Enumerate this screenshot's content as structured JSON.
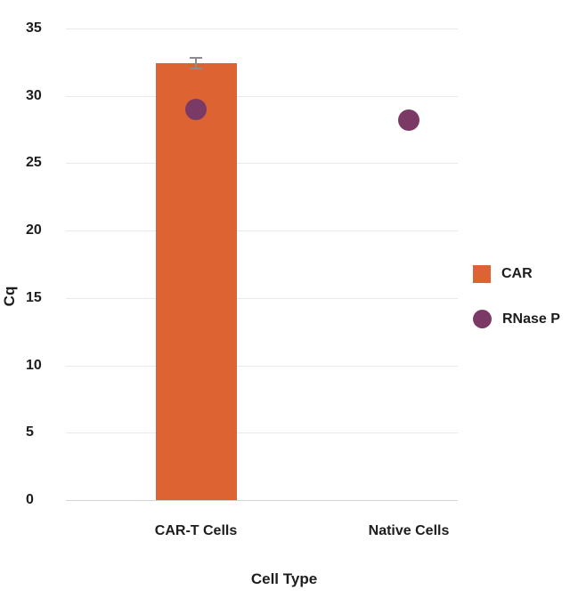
{
  "chart_data": {
    "type": "bar",
    "title": "",
    "xlabel": "Cell Type",
    "ylabel": "Cq",
    "categories": [
      "CAR-T Cells",
      "Native Cells"
    ],
    "series": [
      {
        "name": "CAR",
        "mark": "bar",
        "color": "#dd6333",
        "values": [
          32.4,
          null
        ],
        "errors": [
          0.4,
          null
        ]
      },
      {
        "name": "RNase P",
        "mark": "point",
        "color": "#7b3a66",
        "values": [
          29.0,
          28.2
        ],
        "errors": [
          null,
          null
        ]
      }
    ],
    "ylim": [
      0,
      35
    ],
    "yticks": [
      0,
      5,
      10,
      15,
      20,
      25,
      30,
      35
    ],
    "grid": "horizontal",
    "gridline_color": "#e9e9e9",
    "baseline_color": "#d4d4d4",
    "error_bar_color": "#8c8c8c",
    "legend_position": "right"
  }
}
